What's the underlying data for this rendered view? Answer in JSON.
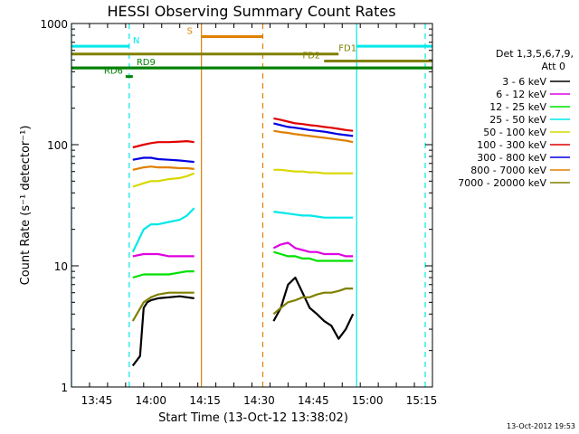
{
  "footer": {
    "timestamp": "13-Oct-2012 19:53"
  },
  "legend": {
    "header1": "Det 1,3,5,6,7,9,",
    "header2": "Att 0",
    "entries": [
      {
        "label": "3 - 6 keV",
        "color": "#000000"
      },
      {
        "label": "6 - 12 keV",
        "color": "#e000e0"
      },
      {
        "label": "12 - 25 keV",
        "color": "#00e000"
      },
      {
        "label": "25 - 50 keV",
        "color": "#00e8e8"
      },
      {
        "label": "50 - 100 keV",
        "color": "#d8d800"
      },
      {
        "label": "100 - 300 keV",
        "color": "#e00000"
      },
      {
        "label": "300 - 800 keV",
        "color": "#0000e0"
      },
      {
        "label": "800 - 7000 keV",
        "color": "#e08000"
      },
      {
        "label": "7000 - 20000 keV",
        "color": "#808000"
      }
    ]
  },
  "chart_data": {
    "type": "line",
    "title": "HESSI Observing Summary Count Rates",
    "xlabel": "Start Time (13-Oct-12 13:38:02)",
    "ylabel": "Count Rate (s⁻¹ detector⁻¹)",
    "yscale": "log",
    "ylim": [
      1,
      1000
    ],
    "xlim": [
      "13:38",
      "15:18"
    ],
    "y_ticks": [
      "1",
      "10",
      "100",
      "1000"
    ],
    "x_ticks": [
      "13:45",
      "14:00",
      "14:15",
      "14:30",
      "14:45",
      "15:00",
      "15:15"
    ],
    "grid": false,
    "legend_position": "right",
    "gaps": [
      [
        "13:55",
        "13:59"
      ],
      [
        "14:12",
        "14:34"
      ],
      [
        "14:57",
        "15:18"
      ]
    ],
    "series": [
      {
        "name": "3 - 6 keV",
        "color": "#000000",
        "segments": [
          {
            "x": [
              "13:55",
              "13:57",
              "13:58",
              "13:59",
              "14:00",
              "14:02",
              "14:05",
              "14:08",
              "14:10",
              "14:12"
            ],
            "y": [
              1.5,
              1.8,
              4.5,
              5,
              5.2,
              5.4,
              5.5,
              5.6,
              5.5,
              5.4
            ]
          },
          {
            "x": [
              "14:34",
              "14:36",
              "14:38",
              "14:40",
              "14:42",
              "14:44",
              "14:46",
              "14:48",
              "14:50",
              "14:52",
              "14:54",
              "14:56"
            ],
            "y": [
              3.5,
              4.5,
              7,
              8,
              6,
              4.5,
              4,
              3.5,
              3.2,
              2.5,
              3,
              4
            ]
          }
        ]
      },
      {
        "name": "6 - 12 keV",
        "color": "#e000e0",
        "segments": [
          {
            "x": [
              "13:55",
              "13:58",
              "14:00",
              "14:02",
              "14:05",
              "14:08",
              "14:10",
              "14:12"
            ],
            "y": [
              12,
              12.5,
              12.5,
              12.5,
              12,
              12,
              12,
              12
            ]
          },
          {
            "x": [
              "14:34",
              "14:36",
              "14:38",
              "14:40",
              "14:42",
              "14:44",
              "14:46",
              "14:48",
              "14:50",
              "14:52",
              "14:54",
              "14:56"
            ],
            "y": [
              14,
              15,
              15.5,
              14,
              13.5,
              13,
              13,
              12.5,
              12.5,
              12.5,
              12,
              12
            ]
          }
        ]
      },
      {
        "name": "12 - 25 keV",
        "color": "#00e000",
        "segments": [
          {
            "x": [
              "13:55",
              "13:58",
              "14:00",
              "14:02",
              "14:05",
              "14:08",
              "14:10",
              "14:12"
            ],
            "y": [
              8,
              8.5,
              8.5,
              8.5,
              8.5,
              8.8,
              9,
              9
            ]
          },
          {
            "x": [
              "14:34",
              "14:36",
              "14:38",
              "14:40",
              "14:42",
              "14:44",
              "14:46",
              "14:48",
              "14:50",
              "14:52",
              "14:54",
              "14:56"
            ],
            "y": [
              13,
              12.5,
              12,
              12,
              11.5,
              11.5,
              11,
              11,
              11,
              11,
              11,
              11
            ]
          }
        ]
      },
      {
        "name": "25 - 50 keV",
        "color": "#00e8e8",
        "segments": [
          {
            "x": [
              "13:55",
              "13:58",
              "14:00",
              "14:02",
              "14:05",
              "14:08",
              "14:10",
              "14:12"
            ],
            "y": [
              13,
              20,
              22,
              22,
              23,
              24,
              26,
              30
            ]
          },
          {
            "x": [
              "14:34",
              "14:36",
              "14:38",
              "14:40",
              "14:42",
              "14:44",
              "14:46",
              "14:48",
              "14:50",
              "14:52",
              "14:54",
              "14:56"
            ],
            "y": [
              28,
              27.5,
              27,
              26.5,
              26,
              26,
              25.5,
              25,
              25,
              25,
              25,
              25
            ]
          }
        ]
      },
      {
        "name": "50 - 100 keV",
        "color": "#d8d800",
        "segments": [
          {
            "x": [
              "13:55",
              "13:58",
              "14:00",
              "14:02",
              "14:05",
              "14:08",
              "14:10",
              "14:12"
            ],
            "y": [
              45,
              48,
              50,
              50,
              52,
              53,
              55,
              58
            ]
          },
          {
            "x": [
              "14:34",
              "14:36",
              "14:38",
              "14:40",
              "14:42",
              "14:44",
              "14:46",
              "14:48",
              "14:50",
              "14:52",
              "14:54",
              "14:56"
            ],
            "y": [
              62,
              62,
              61,
              60,
              60,
              59,
              59,
              58,
              58,
              58,
              58,
              58
            ]
          }
        ]
      },
      {
        "name": "100 - 300 keV",
        "color": "#e00000",
        "segments": [
          {
            "x": [
              "13:55",
              "13:58",
              "14:00",
              "14:02",
              "14:05",
              "14:08",
              "14:10",
              "14:12"
            ],
            "y": [
              95,
              100,
              103,
              105,
              105,
              106,
              107,
              105
            ]
          },
          {
            "x": [
              "14:34",
              "14:36",
              "14:38",
              "14:40",
              "14:42",
              "14:44",
              "14:46",
              "14:48",
              "14:50",
              "14:52",
              "14:54",
              "14:56"
            ],
            "y": [
              165,
              160,
              155,
              150,
              148,
              145,
              143,
              140,
              138,
              135,
              132,
              130
            ]
          }
        ]
      },
      {
        "name": "300 - 800 keV",
        "color": "#0000e0",
        "segments": [
          {
            "x": [
              "13:55",
              "13:58",
              "14:00",
              "14:02",
              "14:05",
              "14:08",
              "14:10",
              "14:12"
            ],
            "y": [
              75,
              78,
              78,
              76,
              75,
              74,
              73,
              72
            ]
          },
          {
            "x": [
              "14:34",
              "14:36",
              "14:38",
              "14:40",
              "14:42",
              "14:44",
              "14:46",
              "14:48",
              "14:50",
              "14:52",
              "14:54",
              "14:56"
            ],
            "y": [
              150,
              145,
              140,
              138,
              135,
              132,
              130,
              128,
              125,
              122,
              120,
              118
            ]
          }
        ]
      },
      {
        "name": "800 - 7000 keV",
        "color": "#e08000",
        "segments": [
          {
            "x": [
              "13:55",
              "13:58",
              "14:00",
              "14:02",
              "14:05",
              "14:08",
              "14:10",
              "14:12"
            ],
            "y": [
              62,
              65,
              66,
              65,
              65,
              64,
              64,
              63
            ]
          },
          {
            "x": [
              "14:34",
              "14:36",
              "14:38",
              "14:40",
              "14:42",
              "14:44",
              "14:46",
              "14:48",
              "14:50",
              "14:52",
              "14:54",
              "14:56"
            ],
            "y": [
              130,
              127,
              125,
              122,
              120,
              118,
              116,
              114,
              112,
              110,
              108,
              105
            ]
          }
        ]
      },
      {
        "name": "7000 - 20000 keV",
        "color": "#808000",
        "segments": [
          {
            "x": [
              "13:55",
              "13:58",
              "14:00",
              "14:02",
              "14:05",
              "14:08",
              "14:10",
              "14:12"
            ],
            "y": [
              3.5,
              5,
              5.5,
              5.8,
              6,
              6,
              6,
              6
            ]
          },
          {
            "x": [
              "14:34",
              "14:36",
              "14:38",
              "14:40",
              "14:42",
              "14:44",
              "14:46",
              "14:48",
              "14:50",
              "14:52",
              "14:54",
              "14:56"
            ],
            "y": [
              4,
              4.5,
              5,
              5.2,
              5.5,
              5.5,
              5.8,
              6,
              6,
              6.2,
              6.5,
              6.5
            ]
          }
        ]
      }
    ],
    "flags": [
      {
        "label": "N",
        "color": "#00e8e8",
        "y": 650,
        "x_start": "13:38",
        "x_end": "13:54",
        "label_at": "13:55"
      },
      {
        "label": "N",
        "color": "#00e8e8",
        "y": 650,
        "x_start": "14:57",
        "x_end": "15:18"
      },
      {
        "label": "S",
        "color": "#e08000",
        "y": 780,
        "x_start": "14:14",
        "x_end": "14:31",
        "label_at": "14:10"
      },
      {
        "label": "FD1",
        "color": "#808000",
        "y": 560,
        "x_start": "13:38",
        "x_end": "14:52",
        "label_at": "14:52"
      },
      {
        "label": "FD2",
        "color": "#808000",
        "y": 490,
        "x_start": "14:48",
        "x_end": "15:18",
        "label_at": "14:42"
      },
      {
        "label": "RD6",
        "color": "#008000",
        "y": 430,
        "x_start": "13:38",
        "x_end": "15:18"
      },
      {
        "label": "RD6",
        "color": "#008000",
        "y": 365,
        "x_start": "13:53",
        "x_end": "13:55",
        "label_at": "13:47"
      },
      {
        "label": "RD9",
        "color": "#008000",
        "y": 430,
        "x_start": "13:38",
        "x_end": "15:18",
        "label_at": "13:56"
      }
    ],
    "vlines": [
      {
        "x": "13:38",
        "color": "#00e8e8",
        "style": "solid"
      },
      {
        "x": "13:54",
        "color": "#00e8e8",
        "style": "dashed"
      },
      {
        "x": "14:14",
        "color": "#e08000",
        "style": "solid"
      },
      {
        "x": "14:31",
        "color": "#e08000",
        "style": "dashed"
      },
      {
        "x": "14:57",
        "color": "#00e8e8",
        "style": "solid"
      },
      {
        "x": "15:16",
        "color": "#00e8e8",
        "style": "dashed"
      }
    ]
  }
}
